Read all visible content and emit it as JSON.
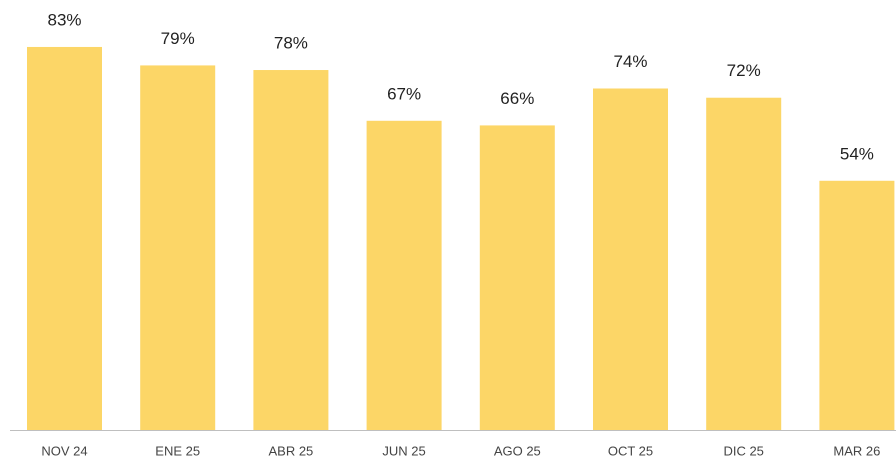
{
  "chart_data": {
    "type": "bar",
    "categories": [
      "NOV 24",
      "ENE 25",
      "ABR 25",
      "JUN 25",
      "AGO 25",
      "OCT 25",
      "DIC 25",
      "MAR 26"
    ],
    "values": [
      83,
      79,
      78,
      67,
      66,
      74,
      72,
      54
    ],
    "value_labels": [
      "83%",
      "79%",
      "78%",
      "67%",
      "66%",
      "74%",
      "72%",
      "54%"
    ],
    "color": "#fcd667"
  }
}
